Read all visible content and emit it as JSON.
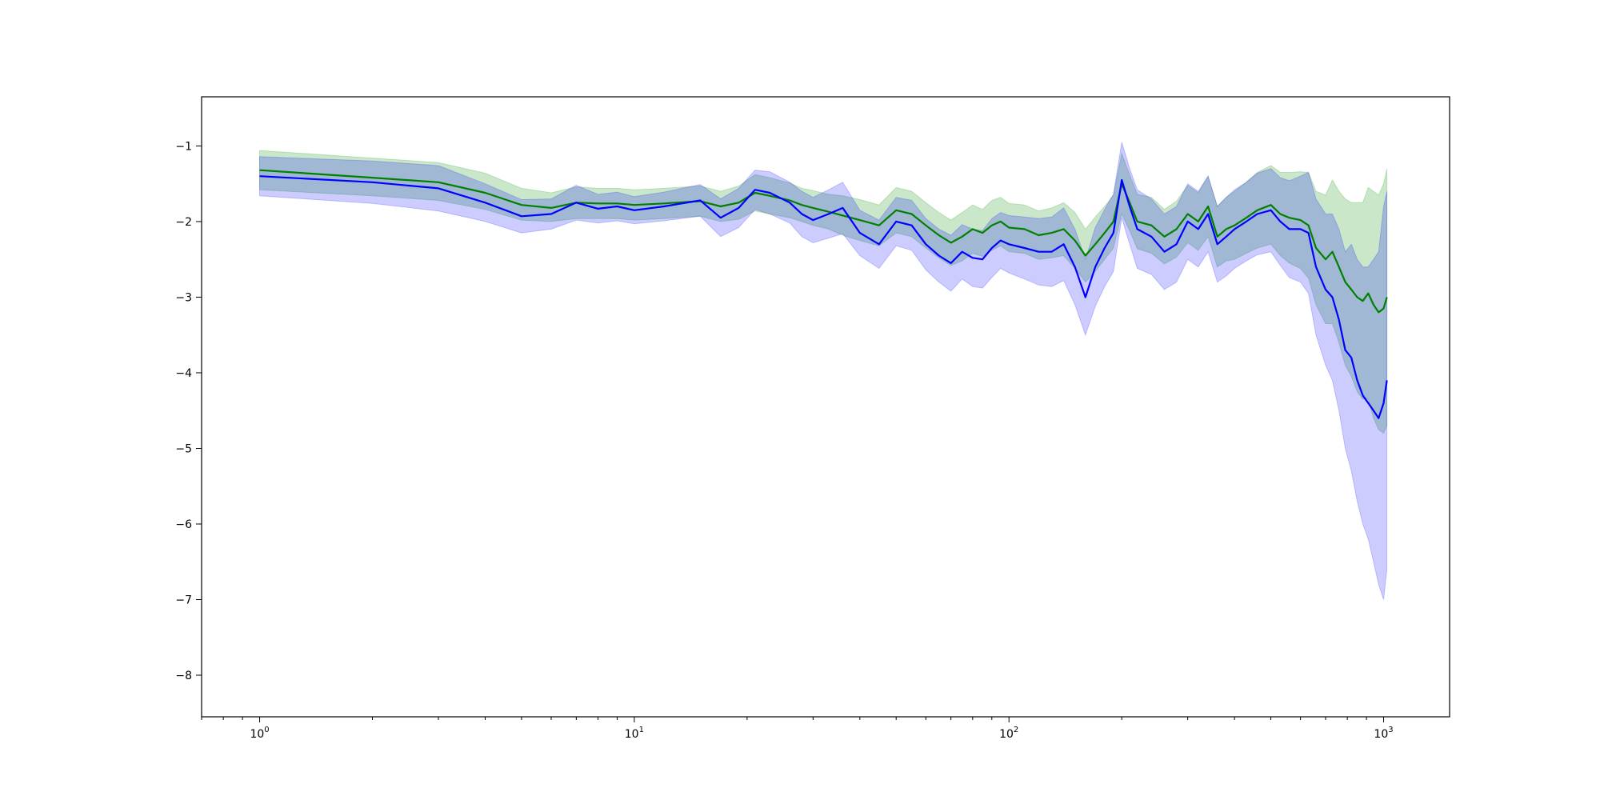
{
  "chart_data": {
    "type": "line",
    "title": "",
    "xlabel": "",
    "ylabel": "",
    "x_scale": "log",
    "xlim": [
      0.7,
      1500
    ],
    "ylim": [
      -8.55,
      -0.35
    ],
    "x_ticks": [
      1,
      10,
      100,
      1000
    ],
    "x_tick_labels": [
      {
        "base": "10",
        "exp": "0"
      },
      {
        "base": "10",
        "exp": "1"
      },
      {
        "base": "10",
        "exp": "2"
      },
      {
        "base": "10",
        "exp": "3"
      }
    ],
    "y_ticks": [
      -1,
      -2,
      -3,
      -4,
      -5,
      -6,
      -7,
      -8
    ],
    "y_tick_labels": [
      "−1",
      "−2",
      "−3",
      "−4",
      "−5",
      "−6",
      "−7",
      "−8"
    ],
    "grid": false,
    "legend": "none",
    "series": [
      {
        "color": "#008000",
        "band_color": "#2ca02c",
        "band_opacity": 0.25,
        "x": [
          1,
          2,
          3,
          4,
          5,
          6,
          7,
          8,
          9,
          10,
          12,
          15,
          17,
          19,
          21,
          23,
          26,
          28,
          30,
          33,
          36,
          40,
          45,
          50,
          55,
          60,
          65,
          70,
          75,
          80,
          85,
          90,
          95,
          100,
          110,
          120,
          130,
          140,
          150,
          160,
          170,
          180,
          190,
          200,
          210,
          220,
          240,
          260,
          280,
          300,
          320,
          340,
          360,
          380,
          400,
          430,
          460,
          500,
          530,
          560,
          600,
          630,
          660,
          700,
          730,
          760,
          790,
          820,
          850,
          880,
          910,
          940,
          970,
          1000,
          1020
        ],
        "y": [
          -1.32,
          -1.42,
          -1.48,
          -1.62,
          -1.78,
          -1.82,
          -1.75,
          -1.76,
          -1.76,
          -1.78,
          -1.76,
          -1.73,
          -1.8,
          -1.75,
          -1.62,
          -1.66,
          -1.72,
          -1.78,
          -1.82,
          -1.87,
          -1.92,
          -1.98,
          -2.05,
          -1.85,
          -1.9,
          -2.05,
          -2.18,
          -2.28,
          -2.2,
          -2.1,
          -2.15,
          -2.05,
          -2.0,
          -2.08,
          -2.1,
          -2.18,
          -2.15,
          -2.1,
          -2.25,
          -2.45,
          -2.3,
          -2.15,
          -2.0,
          -1.5,
          -1.75,
          -2.0,
          -2.05,
          -2.2,
          -2.1,
          -1.9,
          -2.0,
          -1.8,
          -2.2,
          -2.1,
          -2.05,
          -1.95,
          -1.85,
          -1.78,
          -1.9,
          -1.95,
          -1.98,
          -2.05,
          -2.35,
          -2.5,
          -2.4,
          -2.6,
          -2.8,
          -2.9,
          -3.0,
          -3.05,
          -2.95,
          -3.1,
          -3.2,
          -3.15,
          -3.0
        ],
        "band_lo": [
          -1.58,
          -1.66,
          -1.72,
          -1.84,
          -1.98,
          -2.0,
          -1.96,
          -1.96,
          -1.96,
          -1.98,
          -1.96,
          -1.93,
          -2.0,
          -1.97,
          -1.86,
          -1.9,
          -1.95,
          -2.0,
          -2.05,
          -2.1,
          -2.18,
          -2.25,
          -2.32,
          -2.15,
          -2.2,
          -2.35,
          -2.48,
          -2.58,
          -2.52,
          -2.42,
          -2.46,
          -2.38,
          -2.32,
          -2.4,
          -2.42,
          -2.5,
          -2.48,
          -2.45,
          -2.62,
          -2.8,
          -2.66,
          -2.5,
          -2.35,
          -1.9,
          -2.12,
          -2.36,
          -2.42,
          -2.56,
          -2.47,
          -2.28,
          -2.38,
          -2.2,
          -2.6,
          -2.52,
          -2.5,
          -2.42,
          -2.35,
          -2.3,
          -2.45,
          -2.55,
          -2.62,
          -2.75,
          -3.1,
          -3.35,
          -3.35,
          -3.6,
          -3.9,
          -4.05,
          -4.25,
          -4.35,
          -4.35,
          -4.6,
          -4.75,
          -4.8,
          -4.7
        ],
        "band_hi": [
          -1.06,
          -1.16,
          -1.22,
          -1.36,
          -1.56,
          -1.62,
          -1.54,
          -1.56,
          -1.56,
          -1.58,
          -1.56,
          -1.53,
          -1.6,
          -1.53,
          -1.38,
          -1.42,
          -1.49,
          -1.56,
          -1.59,
          -1.64,
          -1.66,
          -1.71,
          -1.78,
          -1.55,
          -1.6,
          -1.75,
          -1.88,
          -1.98,
          -1.88,
          -1.78,
          -1.84,
          -1.72,
          -1.68,
          -1.76,
          -1.78,
          -1.86,
          -1.82,
          -1.75,
          -1.88,
          -2.1,
          -1.94,
          -1.8,
          -1.65,
          -1.1,
          -1.38,
          -1.64,
          -1.68,
          -1.84,
          -1.73,
          -1.52,
          -1.62,
          -1.4,
          -1.8,
          -1.68,
          -1.6,
          -1.48,
          -1.35,
          -1.26,
          -1.35,
          -1.35,
          -1.34,
          -1.35,
          -1.6,
          -1.65,
          -1.45,
          -1.6,
          -1.7,
          -1.75,
          -1.75,
          -1.75,
          -1.55,
          -1.6,
          -1.65,
          -1.5,
          -1.3
        ]
      },
      {
        "color": "#0000ff",
        "band_color": "#0000ff",
        "band_opacity": 0.2,
        "x": [
          1,
          2,
          3,
          4,
          5,
          6,
          7,
          8,
          9,
          10,
          12,
          15,
          17,
          19,
          21,
          23,
          26,
          28,
          30,
          33,
          36,
          40,
          45,
          50,
          55,
          60,
          65,
          70,
          75,
          80,
          85,
          90,
          95,
          100,
          110,
          120,
          130,
          140,
          150,
          160,
          170,
          180,
          190,
          200,
          210,
          220,
          240,
          260,
          280,
          300,
          320,
          340,
          360,
          380,
          400,
          430,
          460,
          500,
          530,
          560,
          600,
          630,
          660,
          700,
          730,
          760,
          790,
          820,
          850,
          880,
          910,
          940,
          970,
          1000,
          1020
        ],
        "y": [
          -1.4,
          -1.48,
          -1.56,
          -1.75,
          -1.93,
          -1.9,
          -1.75,
          -1.83,
          -1.8,
          -1.85,
          -1.8,
          -1.72,
          -1.95,
          -1.82,
          -1.58,
          -1.62,
          -1.75,
          -1.9,
          -1.98,
          -1.9,
          -1.82,
          -2.15,
          -2.3,
          -2.0,
          -2.05,
          -2.3,
          -2.45,
          -2.55,
          -2.4,
          -2.48,
          -2.5,
          -2.35,
          -2.25,
          -2.3,
          -2.35,
          -2.4,
          -2.4,
          -2.3,
          -2.6,
          -3.0,
          -2.6,
          -2.35,
          -2.15,
          -1.45,
          -1.8,
          -2.1,
          -2.2,
          -2.4,
          -2.3,
          -2.0,
          -2.1,
          -1.9,
          -2.3,
          -2.2,
          -2.1,
          -2.0,
          -1.9,
          -1.85,
          -2.0,
          -2.1,
          -2.1,
          -2.15,
          -2.6,
          -2.9,
          -3.0,
          -3.3,
          -3.7,
          -3.8,
          -4.1,
          -4.3,
          -4.4,
          -4.5,
          -4.6,
          -4.4,
          -4.1
        ],
        "band_lo": [
          -1.66,
          -1.76,
          -1.86,
          -2.0,
          -2.15,
          -2.1,
          -1.98,
          -2.02,
          -1.99,
          -2.03,
          -1.99,
          -1.93,
          -2.2,
          -2.08,
          -1.84,
          -1.9,
          -2.02,
          -2.2,
          -2.28,
          -2.22,
          -2.16,
          -2.45,
          -2.62,
          -2.32,
          -2.38,
          -2.64,
          -2.8,
          -2.92,
          -2.76,
          -2.86,
          -2.88,
          -2.74,
          -2.62,
          -2.68,
          -2.76,
          -2.84,
          -2.86,
          -2.78,
          -3.1,
          -3.5,
          -3.12,
          -2.86,
          -2.66,
          -1.95,
          -2.3,
          -2.62,
          -2.7,
          -2.9,
          -2.8,
          -2.5,
          -2.6,
          -2.4,
          -2.8,
          -2.72,
          -2.62,
          -2.52,
          -2.44,
          -2.4,
          -2.58,
          -2.74,
          -2.8,
          -2.95,
          -3.5,
          -3.9,
          -4.1,
          -4.5,
          -5.0,
          -5.3,
          -5.7,
          -6.0,
          -6.2,
          -6.5,
          -6.8,
          -7.0,
          -6.6
        ],
        "band_hi": [
          -1.14,
          -1.2,
          -1.26,
          -1.5,
          -1.71,
          -1.7,
          -1.52,
          -1.64,
          -1.61,
          -1.67,
          -1.61,
          -1.51,
          -1.7,
          -1.56,
          -1.32,
          -1.34,
          -1.48,
          -1.6,
          -1.68,
          -1.58,
          -1.48,
          -1.85,
          -1.98,
          -1.68,
          -1.72,
          -1.96,
          -2.1,
          -2.18,
          -2.04,
          -2.1,
          -2.12,
          -1.96,
          -1.88,
          -1.92,
          -1.94,
          -1.96,
          -1.94,
          -1.82,
          -2.1,
          -2.5,
          -2.08,
          -1.84,
          -1.64,
          -0.95,
          -1.3,
          -1.58,
          -1.7,
          -1.9,
          -1.8,
          -1.5,
          -1.6,
          -1.4,
          -1.8,
          -1.68,
          -1.58,
          -1.48,
          -1.36,
          -1.3,
          -1.42,
          -1.46,
          -1.4,
          -1.35,
          -1.7,
          -1.9,
          -1.9,
          -2.1,
          -2.4,
          -2.3,
          -2.5,
          -2.6,
          -2.6,
          -2.5,
          -2.4,
          -1.8,
          -1.6
        ]
      }
    ]
  }
}
